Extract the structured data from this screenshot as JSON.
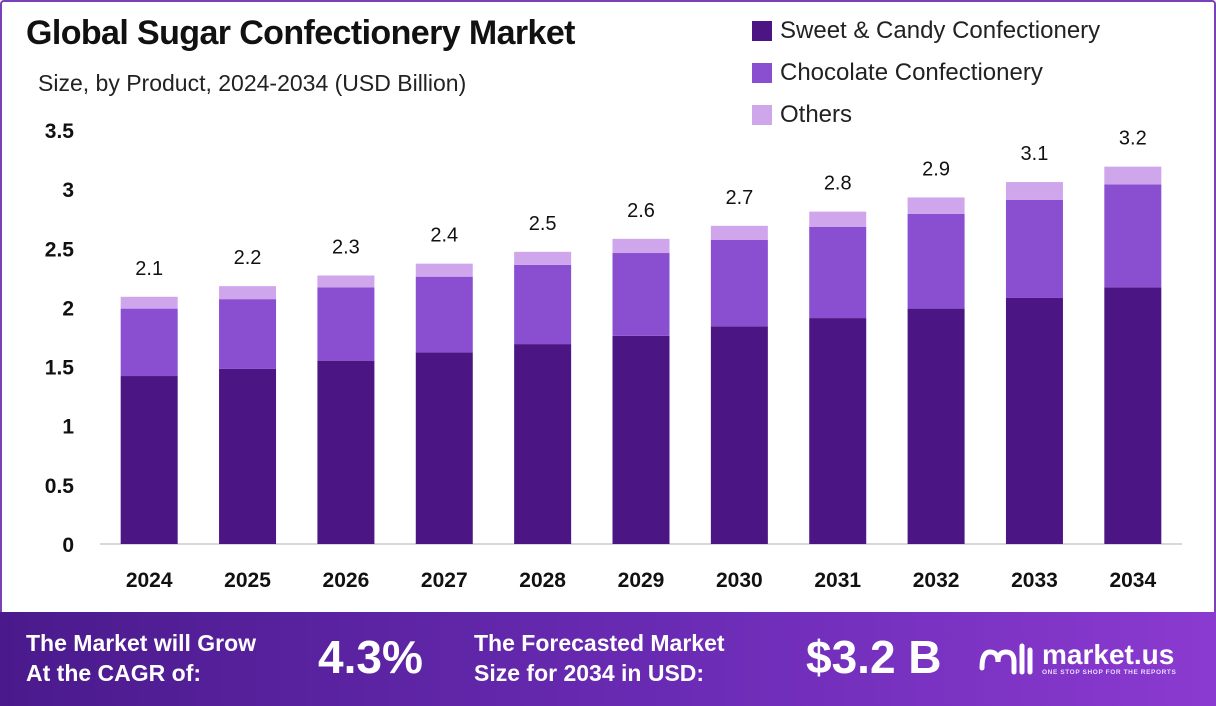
{
  "title": "Global Sugar Confectionery Market",
  "subtitle": "Size, by Product, 2024-2034 (USD Billion)",
  "colors": {
    "sweet": "#4b1683",
    "chocolate": "#8a4fd1",
    "others": "#cfa6ec",
    "axis": "#cccccc",
    "text": "#111111"
  },
  "chart_data": {
    "type": "bar",
    "stacked": true,
    "title": "Global Sugar Confectionery Market",
    "subtitle": "Size, by Product, 2024-2034 (USD Billion)",
    "xlabel": "",
    "ylabel": "",
    "ylim": [
      0,
      3.5
    ],
    "yticks": [
      "0",
      "0.5",
      "1",
      "1.5",
      "2",
      "2.5",
      "3",
      "3.5"
    ],
    "categories": [
      "2024",
      "2025",
      "2026",
      "2027",
      "2028",
      "2029",
      "2030",
      "2031",
      "2032",
      "2033",
      "2034"
    ],
    "series": [
      {
        "name": "Sweet & Candy Confectionery",
        "values": [
          1.42,
          1.48,
          1.55,
          1.62,
          1.69,
          1.76,
          1.84,
          1.91,
          1.99,
          2.08,
          2.17
        ]
      },
      {
        "name": "Chocolate Confectionery",
        "values": [
          0.57,
          0.59,
          0.62,
          0.64,
          0.67,
          0.7,
          0.73,
          0.77,
          0.8,
          0.83,
          0.87
        ]
      },
      {
        "name": "Others",
        "values": [
          0.1,
          0.11,
          0.1,
          0.11,
          0.11,
          0.12,
          0.12,
          0.13,
          0.14,
          0.15,
          0.15
        ]
      }
    ],
    "totals": [
      "2.1",
      "2.2",
      "2.3",
      "2.4",
      "2.5",
      "2.6",
      "2.7",
      "2.8",
      "2.9",
      "3.1",
      "3.2"
    ],
    "legend_position": "top-right"
  },
  "footer": {
    "cagr_label_line1": "The Market will Grow",
    "cagr_label_line2": "At the CAGR of:",
    "cagr_value": "4.3%",
    "forecast_label_line1": "The Forecasted Market",
    "forecast_label_line2": "Size for 2034 in USD:",
    "forecast_value": "$3.2 B",
    "logo_name": "market.us",
    "logo_tagline": "ONE STOP SHOP FOR THE REPORTS"
  }
}
